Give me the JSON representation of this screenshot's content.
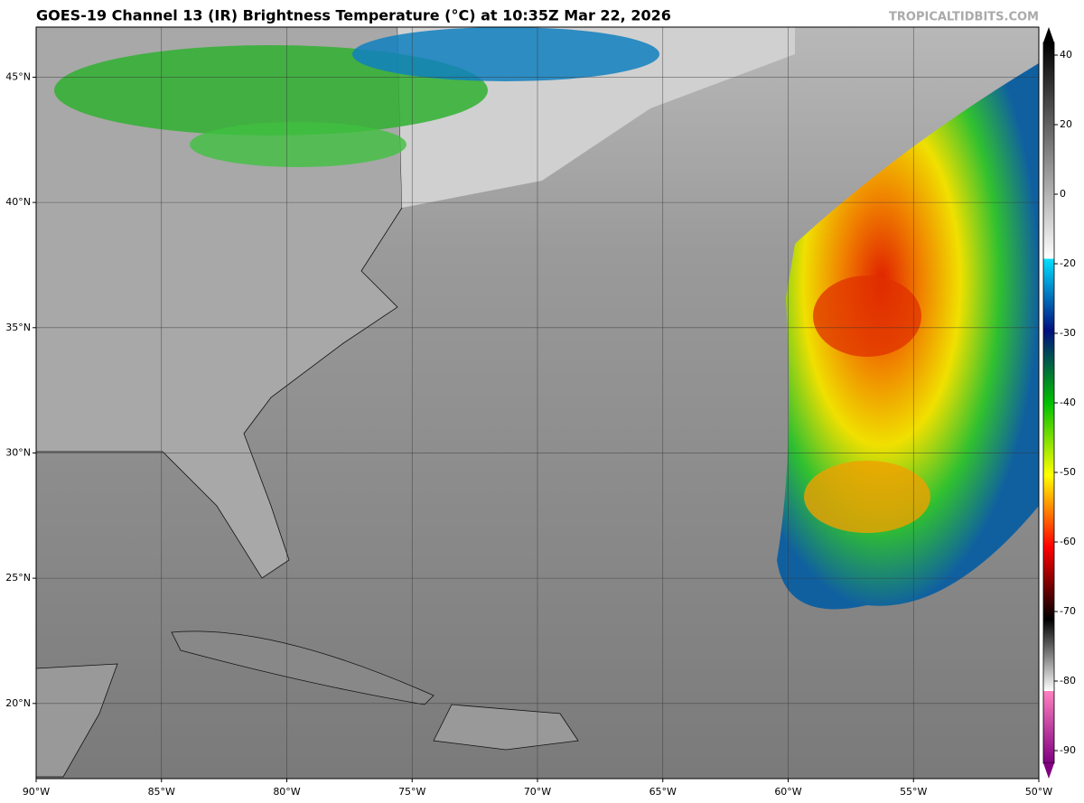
{
  "header": {
    "title": "GOES-19 Channel 13 (IR) Brightness Temperature (°C) at 10:35Z Mar 22, 2026",
    "credit": "TROPICALTIDBITS.COM"
  },
  "map": {
    "lonlim": [
      -90,
      -50
    ],
    "latlim": [
      17,
      47
    ],
    "lon_ticks": [
      {
        "value": -90,
        "label": "90°W"
      },
      {
        "value": -85,
        "label": "85°W"
      },
      {
        "value": -80,
        "label": "80°W"
      },
      {
        "value": -75,
        "label": "75°W"
      },
      {
        "value": -70,
        "label": "70°W"
      },
      {
        "value": -65,
        "label": "65°W"
      },
      {
        "value": -60,
        "label": "60°W"
      },
      {
        "value": -55,
        "label": "55°W"
      },
      {
        "value": -50,
        "label": "50°W"
      }
    ],
    "lat_ticks": [
      {
        "value": 45,
        "label": "45°N"
      },
      {
        "value": 40,
        "label": "40°N"
      },
      {
        "value": 35,
        "label": "35°N"
      },
      {
        "value": 30,
        "label": "30°N"
      },
      {
        "value": 25,
        "label": "25°N"
      },
      {
        "value": 20,
        "label": "20°N"
      }
    ]
  },
  "colorbar": {
    "ticks": [
      40,
      20,
      0,
      -20,
      -30,
      -40,
      -50,
      -60,
      -70,
      -80,
      -90
    ]
  }
}
